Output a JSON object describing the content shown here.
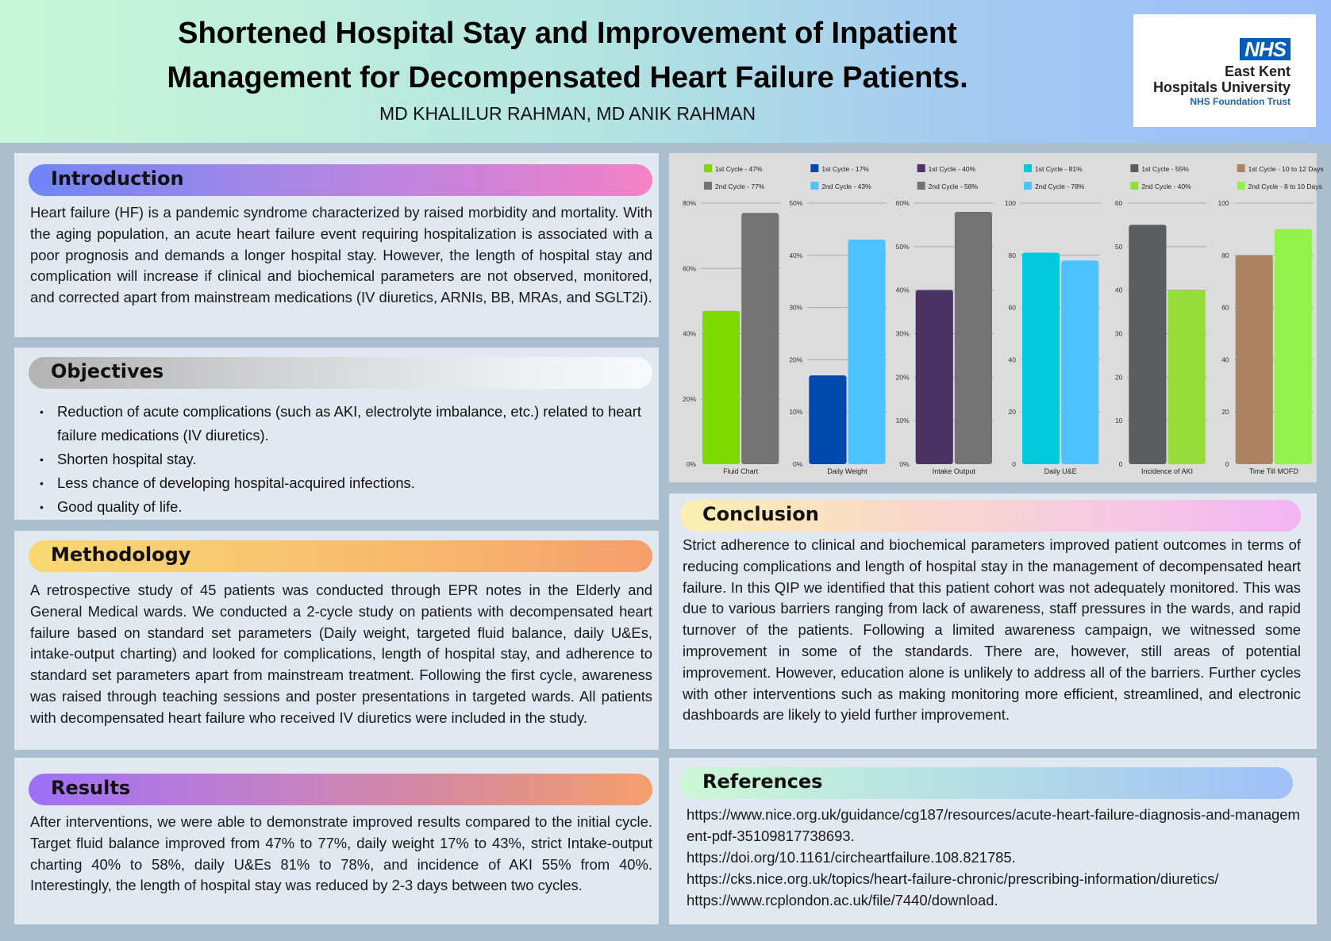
{
  "header": {
    "title_line1": "Shortened Hospital Stay and Improvement of Inpatient",
    "title_line2": "Management for Decompensated Heart Failure Patients.",
    "authors": "MD KHALILUR RAHMAN, MD ANIK RAHMAN",
    "logo": {
      "badge": "NHS",
      "line1": "East Kent",
      "line2": "Hospitals University",
      "line3": "NHS Foundation Trust",
      "badge_color": "#005eb8"
    }
  },
  "introduction": {
    "heading": "Introduction",
    "text": "Heart failure (HF) is a pandemic syndrome characterized by raised morbidity and mortality. With the aging population, an acute heart failure event requiring hospitalization is associated with a poor prognosis and demands a longer hospital stay. However, the length of hospital stay and complication will increase if clinical and biochemical parameters are not observed, monitored, and corrected apart from mainstream medications (IV diuretics, ARNIs, BB, MRAs, and SGLT2i)."
  },
  "objectives": {
    "heading": "Objectives",
    "items": [
      "Reduction of acute complications (such as AKI, electrolyte imbalance, etc.) related to heart failure medications (IV diuretics).",
      "Shorten hospital stay.",
      "Less chance of developing hospital-acquired infections.",
      "Good quality of life."
    ]
  },
  "methodology": {
    "heading": "Methodology",
    "text": "A retrospective study of 45 patients was conducted through EPR notes in the Elderly and General Medical wards. We conducted a 2-cycle study on patients with decompensated heart failure based on standard set parameters (Daily weight, targeted fluid balance, daily U&Es, intake-output charting) and looked for complications, length of hospital stay, and adherence to standard set parameters apart from mainstream treatment. Following the first cycle, awareness was raised through teaching sessions and poster presentations in targeted wards. All patients with decompensated heart failure who received IV diuretics were included in the study."
  },
  "results": {
    "heading": "Results",
    "text": "After interventions, we were able to demonstrate improved results compared to the initial cycle. Target fluid balance improved from 47% to 77%, daily weight 17% to 43%, strict Intake-output charting 40% to 58%, daily U&Es 81% to 78%, and incidence of AKI 55% from 40%. Interestingly, the length of hospital stay was reduced by 2-3 days between two cycles."
  },
  "conclusion": {
    "heading": "Conclusion",
    "text": "Strict adherence to clinical and biochemical parameters improved patient outcomes in terms of reducing complications and length of hospital stay in the management of decompensated heart failure. In this QIP we identified that this patient cohort was not adequately monitored. This was due to various barriers ranging from lack of awareness, staff pressures in the wards, and rapid turnover of the patients. Following a limited awareness campaign, we witnessed some improvement in some of the standards. There are, however, still areas of potential improvement. However, education alone is unlikely to address all of the barriers. Further cycles with other interventions such as making monitoring more efficient, streamlined, and electronic dashboards are likely to yield further improvement."
  },
  "references": {
    "heading": "References",
    "items": [
      "https://www.nice.org.uk/guidance/cg187/resources/acute-heart-failure-diagnosis-and-management-pdf-35109817738693.",
      "https://doi.org/10.1161/circheartfailure.108.821785.",
      "https://cks.nice.org.uk/topics/heart-failure-chronic/prescribing-information/diuretics/",
      "https://www.rcplondon.ac.uk/file/7440/download."
    ]
  },
  "chart_data": [
    {
      "type": "bar",
      "title": "",
      "xlabel": "Fluid Chart",
      "ylabel": "",
      "categories": [
        "Fluid Chart"
      ],
      "ylim": [
        0,
        80
      ],
      "yticks": [
        "0%",
        "20%",
        "40%",
        "60%",
        "80%"
      ],
      "tick_values": [
        0,
        20,
        40,
        60,
        80
      ],
      "legend_position": "top",
      "grid": true,
      "series": [
        {
          "name": "1st Cycle - 47%",
          "values": [
            47
          ],
          "color": "#7ed900"
        },
        {
          "name": "2nd Cycle - 77%",
          "values": [
            77
          ],
          "color": "#737373"
        }
      ]
    },
    {
      "type": "bar",
      "title": "",
      "xlabel": "Daily Weight",
      "ylabel": "",
      "categories": [
        "Daily Weight"
      ],
      "ylim": [
        0,
        50
      ],
      "yticks": [
        "0%",
        "10%",
        "20%",
        "30%",
        "40%",
        "50%"
      ],
      "tick_values": [
        0,
        10,
        20,
        30,
        40,
        50
      ],
      "legend_position": "top",
      "grid": true,
      "series": [
        {
          "name": "1st Cycle - 17%",
          "values": [
            17
          ],
          "color": "#004aad"
        },
        {
          "name": "2nd Cycle - 43%",
          "values": [
            43
          ],
          "color": "#4cc3ff"
        }
      ]
    },
    {
      "type": "bar",
      "title": "",
      "xlabel": "Intake Output",
      "ylabel": "",
      "categories": [
        "Intake Output"
      ],
      "ylim": [
        0,
        60
      ],
      "yticks": [
        "0%",
        "10%",
        "20%",
        "30%",
        "40%",
        "50%",
        "60%"
      ],
      "tick_values": [
        0,
        10,
        20,
        30,
        40,
        50,
        60
      ],
      "legend_position": "top",
      "grid": true,
      "series": [
        {
          "name": "1st Cycle - 40%",
          "values": [
            40
          ],
          "color": "#4b3363"
        },
        {
          "name": "2nd Cycle - 58%",
          "values": [
            58
          ],
          "color": "#737373"
        }
      ]
    },
    {
      "type": "bar",
      "title": "",
      "xlabel": "Daily U&E",
      "ylabel": "",
      "categories": [
        "Daily U&E"
      ],
      "ylim": [
        0,
        100
      ],
      "yticks": [
        "0",
        "20",
        "40",
        "60",
        "80",
        "100"
      ],
      "tick_values": [
        0,
        20,
        40,
        60,
        80,
        100
      ],
      "legend_position": "top",
      "grid": true,
      "series": [
        {
          "name": "1st Cycle - 81%",
          "values": [
            81
          ],
          "color": "#00c9dc"
        },
        {
          "name": "2nd Cycle - 78%",
          "values": [
            78
          ],
          "color": "#4cc3ff"
        }
      ]
    },
    {
      "type": "bar",
      "title": "",
      "xlabel": "Incidence of AKI",
      "ylabel": "",
      "categories": [
        "Incidence of AKI"
      ],
      "ylim": [
        0,
        60
      ],
      "yticks": [
        "0",
        "10",
        "20",
        "30",
        "40",
        "50",
        "60"
      ],
      "tick_values": [
        0,
        10,
        20,
        30,
        40,
        50,
        60
      ],
      "legend_position": "top",
      "grid": true,
      "series": [
        {
          "name": "1st Cycle - 55%",
          "values": [
            55
          ],
          "color": "#5a5e61"
        },
        {
          "name": "2nd Cycle - 40%",
          "values": [
            40
          ],
          "color": "#96dc3a"
        }
      ]
    },
    {
      "type": "bar",
      "title": "",
      "xlabel": "Time Till MOFD",
      "ylabel": "",
      "categories": [
        "Time Till MOFD"
      ],
      "ylim": [
        0,
        100
      ],
      "yticks": [
        "0",
        "20",
        "40",
        "60",
        "80",
        "100"
      ],
      "tick_values": [
        0,
        20,
        40,
        60,
        80,
        100
      ],
      "legend_position": "top",
      "grid": true,
      "series": [
        {
          "name": "1st Cycle - 10 to 12 Days",
          "values": [
            80
          ],
          "color": "#ad8260"
        },
        {
          "name": "2nd Cycle - 8 to 10 Days",
          "values": [
            90
          ],
          "color": "#92f24a"
        }
      ]
    }
  ],
  "colors": {
    "background": "#a9bfcf",
    "panel": "#e1e8ef",
    "chart_panel": "#dcdcdc"
  }
}
